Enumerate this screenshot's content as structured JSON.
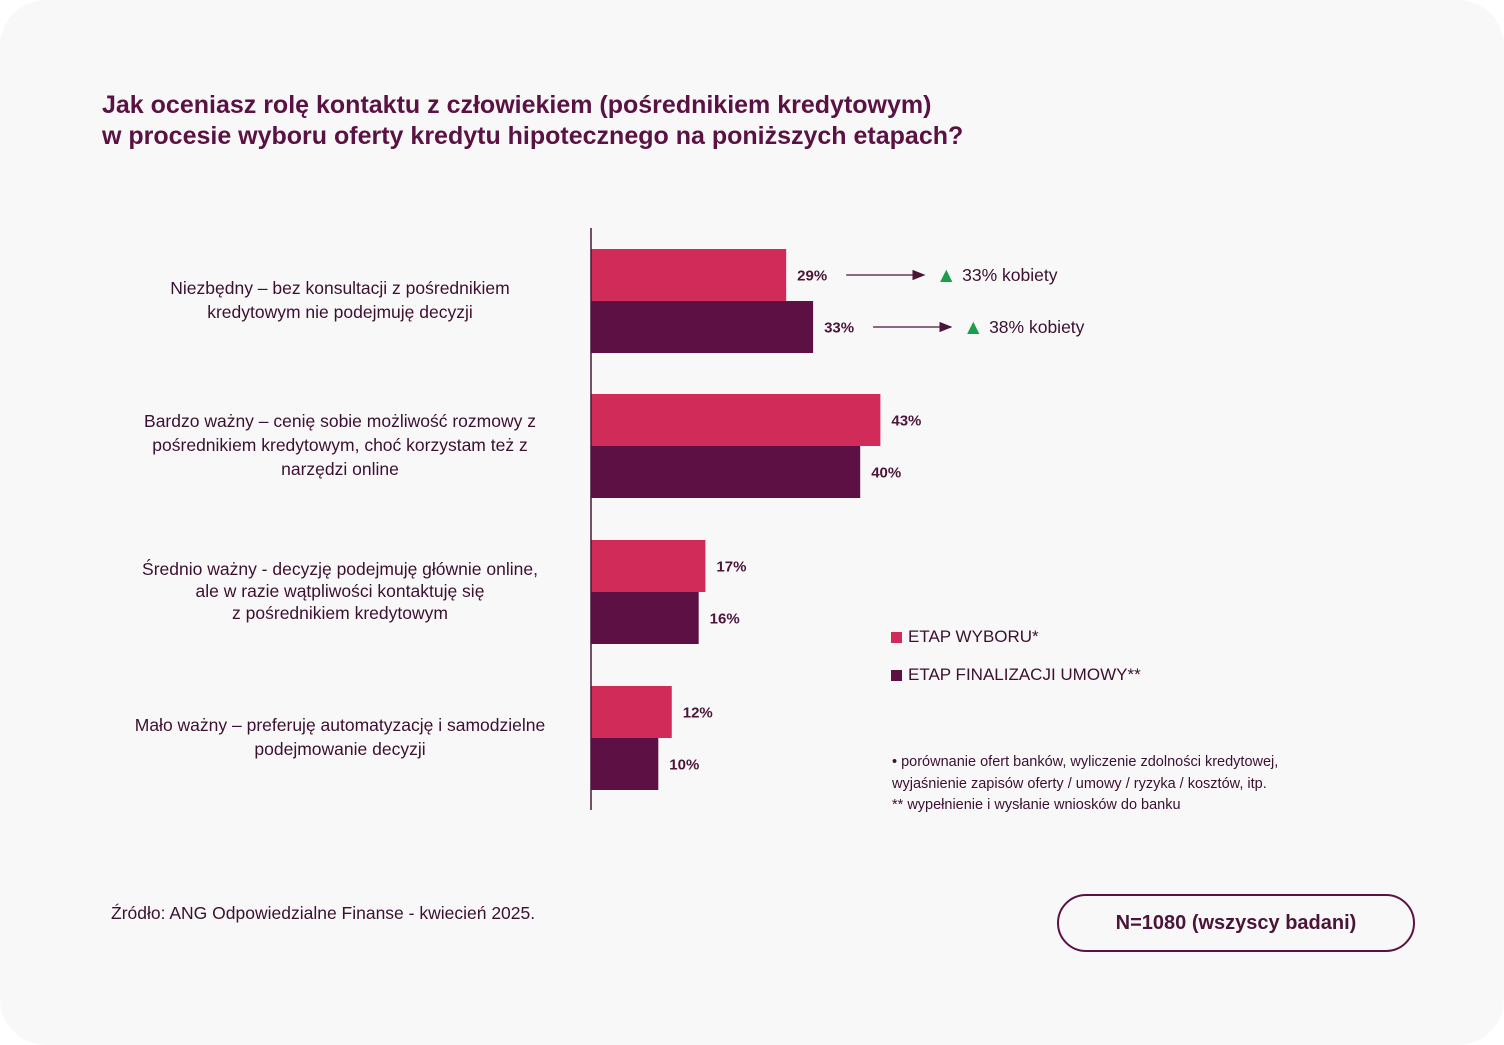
{
  "title_lines": [
    "Jak oceniasz rolę kontaktu z człowiekiem (pośrednikiem kredytowym)",
    "w procesie wyboru oferty kredytu hipotecznego na poniższych etapach?"
  ],
  "chart_data": {
    "type": "bar",
    "orientation": "horizontal",
    "categories": [
      [
        "Niezbędny – bez konsultacji z pośrednikiem",
        "kredytowym nie podejmuję decyzji"
      ],
      [
        "Bardzo ważny – cenię sobie możliwość rozmowy z",
        "pośrednikiem kredytowym, choć korzystam też z",
        "narzędzi online"
      ],
      [
        "Średnio ważny - decyzję podejmuję głównie online,",
        "ale w razie wątpliwości kontaktuję się",
        "z pośrednikiem kredytowym"
      ],
      [
        "Mało ważny – preferuję automatyzację i samodzielne",
        "podejmowanie decyzji"
      ]
    ],
    "series": [
      {
        "name": "ETAP WYBORU*",
        "values": [
          29,
          43,
          17,
          12
        ],
        "labels": [
          "29%",
          "43%",
          "17%",
          "12%"
        ],
        "color": "#d02b59"
      },
      {
        "name": "ETAP FINALIZACJI UMOWY**",
        "values": [
          33,
          40,
          16,
          10
        ],
        "labels": [
          "33%",
          "40%",
          "16%",
          "10%"
        ],
        "color": "#5c1044"
      }
    ],
    "annotations": [
      {
        "series": 0,
        "category": 0,
        "text": "33% kobiety",
        "marker": "▲",
        "marker_color": "#1a9e4b"
      },
      {
        "series": 1,
        "category": 0,
        "text": "38% kobiety",
        "marker": "▲",
        "marker_color": "#1a9e4b"
      }
    ],
    "legend_position": "right"
  },
  "notes": [
    "•    porównanie ofert banków, wyliczenie zdolności kredytowej,",
    "      wyjaśnienie zapisów oferty / umowy / ryzyka / kosztów, itp.",
    "** wypełnienie i wysłanie wniosków do banku"
  ],
  "source": "Źródło: ANG Odpowiedzialne Finanse - kwiecień 2025.",
  "sample": "N=1080 (wszyscy badani)"
}
